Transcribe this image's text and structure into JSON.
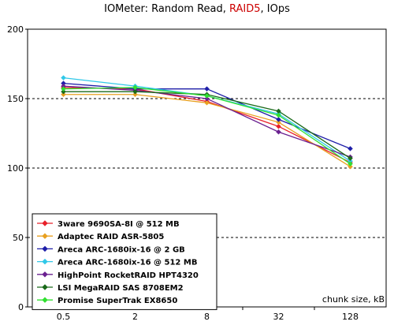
{
  "title": {
    "prefix": "IOMeter: Random Read, ",
    "accent": "RAID5",
    "suffix": ", IOps",
    "accent_color": "#cc0000"
  },
  "chart_data": {
    "type": "line",
    "x": [
      "0.5",
      "2",
      "8",
      "32",
      "128"
    ],
    "xlabel": "chunk size, kB",
    "ylabel": "",
    "ylim": [
      0,
      200
    ],
    "yticks": [
      0,
      50,
      100,
      150,
      200
    ],
    "grid": "horizontal dashed",
    "legend_position": "bottom-left",
    "series": [
      {
        "name": "3ware 9690SA-8I @ 512 MB",
        "color": "#e8202a",
        "values": [
          158,
          157,
          148,
          130,
          104
        ]
      },
      {
        "name": "Adaptec RAID ASR-5805",
        "color": "#e8a020",
        "values": [
          153,
          153,
          147,
          133,
          101
        ]
      },
      {
        "name": "Areca ARC-1680ix-16 @ 2 GB",
        "color": "#1e1ea8",
        "values": [
          161,
          157,
          157,
          135,
          114
        ]
      },
      {
        "name": "Areca ARC-1680ix-16 @ 512 MB",
        "color": "#30c8e8",
        "values": [
          165,
          159,
          152,
          139,
          105
        ]
      },
      {
        "name": "HighPoint RocketRAID HPT4320",
        "color": "#6a2090",
        "values": [
          159,
          156,
          150,
          126,
          108
        ]
      },
      {
        "name": "LSI MegaRAID SAS 8708EM2",
        "color": "#1a6a1a",
        "values": [
          155,
          155,
          153,
          141,
          107
        ]
      },
      {
        "name": "Promise SuperTrak EX8650",
        "color": "#30e030",
        "values": [
          157,
          158,
          152,
          138,
          103
        ]
      }
    ]
  }
}
